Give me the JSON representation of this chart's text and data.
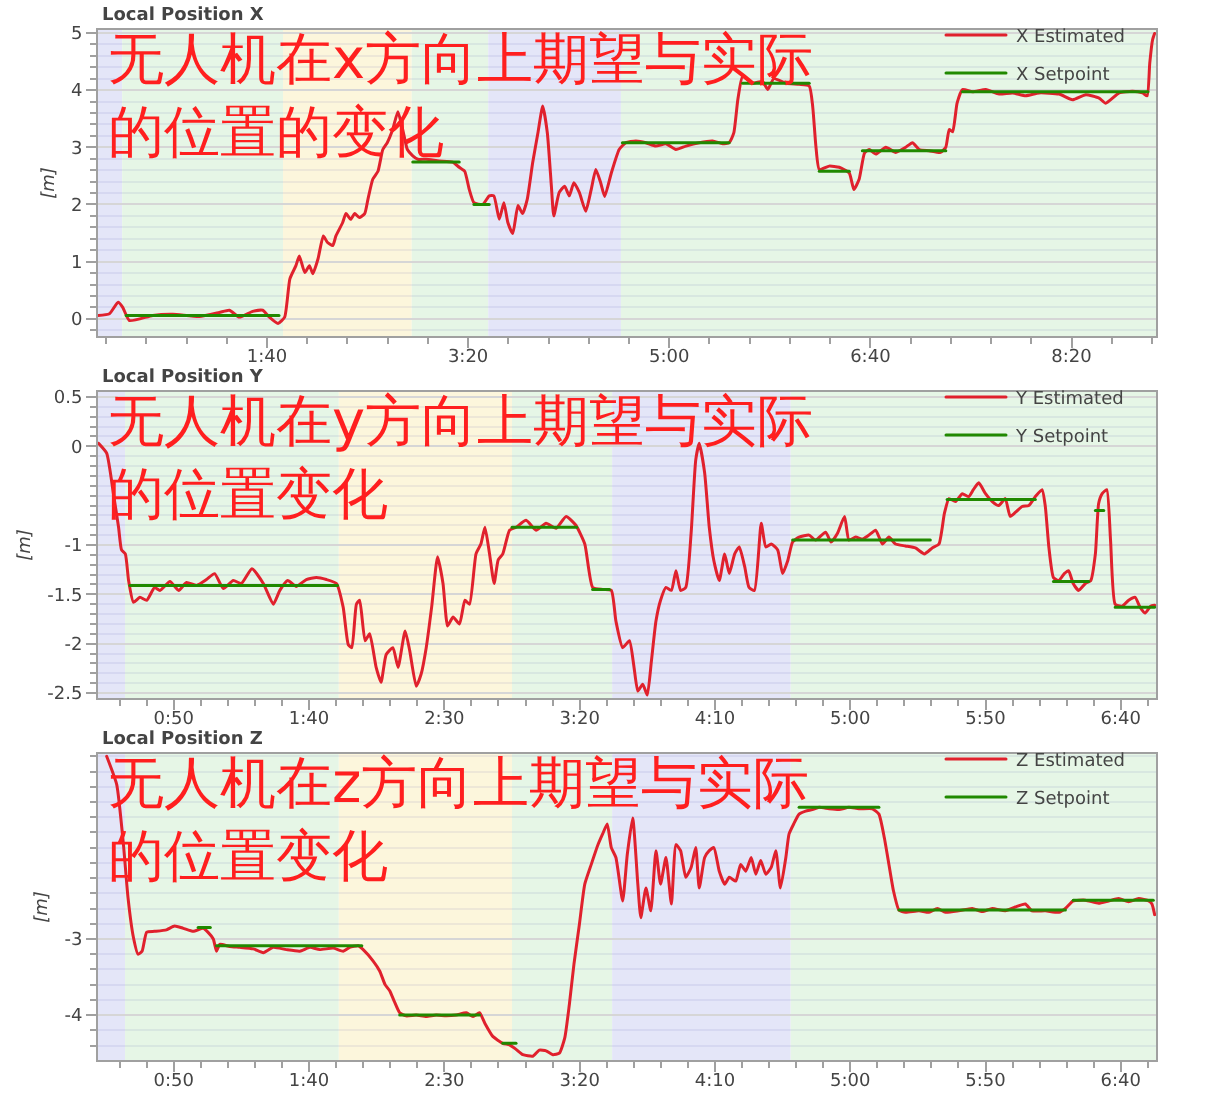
{
  "chart_data": [
    {
      "type": "line",
      "title": "Local Position X",
      "ylabel": "[m]",
      "xlim": [
        16,
        542
      ],
      "ylim": [
        -0.3,
        5.05
      ],
      "xticks": [
        {
          "value": 20,
          "label": null
        },
        {
          "value": 40,
          "label": null
        },
        {
          "value": 60,
          "label": null
        },
        {
          "value": 80,
          "label": null
        },
        {
          "value": 100,
          "label": "1:40"
        },
        {
          "value": 120,
          "label": null
        },
        {
          "value": 140,
          "label": null
        },
        {
          "value": 160,
          "label": null
        },
        {
          "value": 180,
          "label": null
        },
        {
          "value": 200,
          "label": "3:20"
        },
        {
          "value": 220,
          "label": null
        },
        {
          "value": 240,
          "label": null
        },
        {
          "value": 260,
          "label": null
        },
        {
          "value": 280,
          "label": null
        },
        {
          "value": 300,
          "label": "5:00"
        },
        {
          "value": 320,
          "label": null
        },
        {
          "value": 340,
          "label": null
        },
        {
          "value": 360,
          "label": null
        },
        {
          "value": 380,
          "label": null
        },
        {
          "value": 400,
          "label": "6:40"
        },
        {
          "value": 420,
          "label": null
        },
        {
          "value": 440,
          "label": null
        },
        {
          "value": 460,
          "label": null
        },
        {
          "value": 480,
          "label": null
        },
        {
          "value": 500,
          "label": "8:20"
        },
        {
          "value": 520,
          "label": null
        },
        {
          "value": 540,
          "label": null
        }
      ],
      "yticks": [
        {
          "value": -0.2,
          "label": null
        },
        0,
        {
          "value": 0.2,
          "label": null
        },
        {
          "value": 0.4,
          "label": null
        },
        {
          "value": 0.6,
          "label": null
        },
        {
          "value": 0.8,
          "label": null
        },
        1,
        {
          "value": 1.2,
          "label": null
        },
        {
          "value": 1.4,
          "label": null
        },
        {
          "value": 1.6,
          "label": null
        },
        {
          "value": 1.8,
          "label": null
        },
        2,
        {
          "value": 2.2,
          "label": null
        },
        {
          "value": 2.4,
          "label": null
        },
        {
          "value": 2.6,
          "label": null
        },
        {
          "value": 2.8,
          "label": null
        },
        3,
        {
          "value": 3.2,
          "label": null
        },
        {
          "value": 3.4,
          "label": null
        },
        {
          "value": 3.6,
          "label": null
        },
        {
          "value": 3.8,
          "label": null
        },
        4,
        {
          "value": 4.2,
          "label": null
        },
        {
          "value": 4.4,
          "label": null
        },
        {
          "value": 4.6,
          "label": null
        },
        {
          "value": 4.8,
          "label": null
        },
        5
      ],
      "series": [
        {
          "name": "X Estimated",
          "color": "#e0212d",
          "x": [
            16,
            21.7,
            26,
            28.3,
            31.6,
            43.2,
            53.2,
            66.4,
            76.3,
            81.3,
            86.3,
            92.9,
            97.9,
            101.2,
            105.5,
            108.8,
            111.4,
            114.4,
            116.1,
            118.8,
            121.1,
            122.8,
            125.4,
            128,
            130,
            132.7,
            134.3,
            137.6,
            139.3,
            141.6,
            143.6,
            145.9,
            148.6,
            150.2,
            152.6,
            155.2,
            157.6,
            159.8,
            162.5,
            165.1,
            167.5,
            169.8,
            172.5,
            175,
            179,
            185.7,
            192.3,
            195.6,
            198.3,
            200.6,
            202.9,
            207.3,
            210.5,
            212.8,
            215.5,
            217.8,
            219.8,
            222.2,
            224.8,
            227.1,
            229.4,
            232.1,
            234.7,
            237.1,
            239.4,
            241.4,
            242.6,
            245.3,
            248,
            250.3,
            252.6,
            255.3,
            258.5,
            261.2,
            263.5,
            265.9,
            267.9,
            271.2,
            275.1,
            278.4,
            283.4,
            288.4,
            293.3,
            298.3,
            303.3,
            308.3,
            314.9,
            321.6,
            326.5,
            329.8,
            332.1,
            334.1,
            336.5,
            341.5,
            346.4,
            349,
            352,
            358,
            364.6,
            369.6,
            371.3,
            372.9,
            374.6,
            379.5,
            384.5,
            389.5,
            391.8,
            394.4,
            397.1,
            399.4,
            402.7,
            407.7,
            412.6,
            417.6,
            420.9,
            424.3,
            429.2,
            434.9,
            437.5,
            439.2,
            440.9,
            443.1,
            445.8,
            450.8,
            457.4,
            464,
            470.7,
            477.2,
            483.9,
            493.8,
            500.5,
            507.1,
            513.7,
            517,
            523.7,
            530.3,
            535.3,
            537.6,
            538.9,
            540.3,
            541.3
          ],
          "values": [
            0.06,
            0.09,
            0.29,
            0.2,
            -0.03,
            0.06,
            0.08,
            0.04,
            0.11,
            0.15,
            0.03,
            0.13,
            0.15,
            0.03,
            -0.08,
            0.03,
            0.7,
            0.93,
            1.1,
            0.81,
            0.93,
            0.79,
            1.05,
            1.45,
            1.34,
            1.28,
            1.45,
            1.68,
            1.84,
            1.74,
            1.84,
            1.77,
            1.84,
            2.09,
            2.44,
            2.58,
            2.96,
            3.08,
            3.31,
            3.62,
            3.31,
            2.96,
            2.85,
            2.79,
            2.79,
            2.76,
            2.74,
            2.65,
            2.58,
            2.26,
            2.03,
            2.0,
            2.15,
            2.15,
            1.74,
            2.03,
            1.68,
            1.49,
            1.98,
            1.84,
            2.09,
            2.73,
            3.25,
            3.72,
            3.25,
            2.32,
            1.8,
            2.21,
            2.32,
            2.15,
            2.38,
            2.21,
            1.88,
            2.26,
            2.61,
            2.38,
            2.14,
            2.55,
            2.96,
            3.08,
            3.11,
            3.08,
            3.02,
            3.06,
            2.96,
            3.02,
            3.08,
            3.11,
            3.06,
            3.08,
            3.25,
            3.83,
            4.24,
            4.12,
            4.15,
            4.01,
            4.2,
            4.12,
            4.1,
            4.07,
            3.72,
            3.02,
            2.61,
            2.67,
            2.65,
            2.55,
            2.26,
            2.44,
            2.9,
            2.96,
            2.88,
            3.0,
            2.91,
            3.0,
            3.08,
            2.96,
            2.94,
            2.91,
            3.0,
            3.31,
            3.27,
            3.77,
            4.01,
            3.97,
            4.01,
            3.93,
            3.95,
            3.9,
            3.95,
            3.93,
            3.83,
            3.92,
            3.86,
            3.77,
            3.95,
            3.98,
            3.95,
            3.9,
            4.47,
            4.88,
            4.99
          ]
        },
        {
          "name": "X Setpoint",
          "color": "#208900",
          "x": [
            30,
            106,
            140,
            172.5,
            195.6,
            199,
            202.9,
            210.5,
            240,
            276.7,
            329.8,
            333,
            336.5,
            369.6,
            372,
            374.6,
            389.5,
            392,
            396,
            437.5,
            441,
            445.8,
            538
          ],
          "values": [
            0.06,
            0.06,
            null,
            2.74,
            2.74,
            null,
            2.0,
            2.0,
            null,
            3.08,
            3.08,
            null,
            4.12,
            4.12,
            null,
            2.58,
            2.58,
            null,
            2.94,
            2.94,
            null,
            3.97,
            3.97
          ]
        }
      ],
      "bands": [
        {
          "axis": "x",
          "from": 16,
          "to": 28,
          "color": "#e4e6f8"
        },
        {
          "axis": "x",
          "from": 28,
          "to": 108,
          "color": "#e6f6e6"
        },
        {
          "axis": "x",
          "from": 108,
          "to": 172,
          "color": "#fcf6dc"
        },
        {
          "axis": "x",
          "from": 172,
          "to": 210,
          "color": "#e6f6e6"
        },
        {
          "axis": "x",
          "from": 210,
          "to": 276,
          "color": "#e4e6f8"
        },
        {
          "axis": "x",
          "from": 276,
          "to": 542,
          "color": "#e6f6e6"
        }
      ],
      "legend": "top right",
      "grid": "y",
      "annotations": [
        "无人机在x方向上期望与实际的位置的变化"
      ]
    },
    {
      "type": "line",
      "title": "Local Position Y",
      "ylabel": "[m]",
      "xlim": [
        22,
        413
      ],
      "ylim": [
        -2.55,
        0.55
      ],
      "xticks": [
        {
          "value": 30,
          "label": null
        },
        {
          "value": 40,
          "label": null
        },
        {
          "value": 50,
          "label": "0:50"
        },
        {
          "value": 60,
          "label": null
        },
        {
          "value": 70,
          "label": null
        },
        {
          "value": 80,
          "label": null
        },
        {
          "value": 90,
          "label": null
        },
        {
          "value": 100,
          "label": "1:40"
        },
        {
          "value": 110,
          "label": null
        },
        {
          "value": 120,
          "label": null
        },
        {
          "value": 130,
          "label": null
        },
        {
          "value": 140,
          "label": null
        },
        {
          "value": 150,
          "label": "2:30"
        },
        {
          "value": 160,
          "label": null
        },
        {
          "value": 170,
          "label": null
        },
        {
          "value": 180,
          "label": null
        },
        {
          "value": 190,
          "label": null
        },
        {
          "value": 200,
          "label": "3:20"
        },
        {
          "value": 210,
          "label": null
        },
        {
          "value": 220,
          "label": null
        },
        {
          "value": 230,
          "label": null
        },
        {
          "value": 240,
          "label": null
        },
        {
          "value": 250,
          "label": "4:10"
        },
        {
          "value": 260,
          "label": null
        },
        {
          "value": 270,
          "label": null
        },
        {
          "value": 280,
          "label": null
        },
        {
          "value": 290,
          "label": null
        },
        {
          "value": 300,
          "label": "5:00"
        },
        {
          "value": 310,
          "label": null
        },
        {
          "value": 320,
          "label": null
        },
        {
          "value": 330,
          "label": null
        },
        {
          "value": 340,
          "label": null
        },
        {
          "value": 350,
          "label": "5:50"
        },
        {
          "value": 360,
          "label": null
        },
        {
          "value": 370,
          "label": null
        },
        {
          "value": 380,
          "label": null
        },
        {
          "value": 390,
          "label": null
        },
        {
          "value": 400,
          "label": "6:40"
        },
        {
          "value": 410,
          "label": null
        }
      ],
      "yticks": [
        -2.5,
        {
          "value": -2.4,
          "label": null
        },
        {
          "value": -2.3,
          "label": null
        },
        {
          "value": -2.2,
          "label": null
        },
        {
          "value": -2.1,
          "label": null
        },
        -2,
        {
          "value": -1.9,
          "label": null
        },
        {
          "value": -1.8,
          "label": null
        },
        {
          "value": -1.7,
          "label": null
        },
        {
          "value": -1.6,
          "label": null
        },
        -1.5,
        {
          "value": -1.4,
          "label": null
        },
        {
          "value": -1.3,
          "label": null
        },
        {
          "value": -1.2,
          "label": null
        },
        {
          "value": -1.1,
          "label": null
        },
        -1,
        {
          "value": -0.9,
          "label": null
        },
        {
          "value": -0.8,
          "label": null
        },
        {
          "value": -0.7,
          "label": null
        },
        {
          "value": -0.6,
          "label": null
        },
        {
          "value": -0.5,
          "label": null
        },
        {
          "value": -0.4,
          "label": null
        },
        {
          "value": -0.3,
          "label": null
        },
        {
          "value": -0.2,
          "label": null
        },
        {
          "value": -0.1,
          "label": null
        },
        0,
        {
          "value": 0.1,
          "label": null
        },
        {
          "value": 0.2,
          "label": null
        },
        {
          "value": 0.3,
          "label": null
        },
        {
          "value": 0.4,
          "label": null
        },
        0.5
      ],
      "series": [
        {
          "name": "Y Estimated",
          "color": "#e0212d",
          "x": [
            22.2,
            25.2,
            27.7,
            29.6,
            30.7,
            32.1,
            33.3,
            35.1,
            37.5,
            40,
            42.9,
            44.9,
            48.6,
            51.8,
            54.7,
            58.4,
            62.1,
            65.1,
            68.3,
            72,
            75,
            78.9,
            83.1,
            86.8,
            89.2,
            92.1,
            95.3,
            99,
            102.7,
            106.4,
            110.1,
            112.6,
            114.5,
            115.8,
            117.5,
            118.7,
            120.7,
            122.4,
            124.8,
            126.6,
            128.5,
            131,
            132.9,
            135.5,
            137.2,
            139.6,
            141.4,
            143.3,
            145.3,
            147.5,
            149.5,
            151.2,
            153.2,
            155.6,
            157.6,
            159.3,
            161.7,
            163.5,
            165,
            166.7,
            168.4,
            169.9,
            171.6,
            174.1,
            176.5,
            180.2,
            183.9,
            187.6,
            191.3,
            195,
            198.6,
            201.9,
            204.8,
            208.5,
            211.7,
            213.4,
            215.9,
            218.4,
            220.1,
            221.5,
            223.3,
            225,
            226.5,
            228.2,
            229.9,
            231.9,
            233.9,
            235.6,
            237.3,
            239.2,
            241.2,
            242.9,
            244.2,
            246.2,
            247.9,
            249.6,
            251.6,
            253.6,
            255.3,
            257.3,
            259,
            261,
            262.6,
            264.6,
            267.1,
            268.8,
            270.8,
            273.2,
            275,
            276.9,
            278.7,
            281.1,
            284.8,
            287.2,
            290.9,
            292.9,
            295.3,
            297.9,
            299.5,
            302,
            304.5,
            306.9,
            309.4,
            311.9,
            314.3,
            316.7,
            320.4,
            324.1,
            327.4,
            330.3,
            332.8,
            334.8,
            336.5,
            338.9,
            341.4,
            343.8,
            345.5,
            347.5,
            350,
            352.5,
            354.9,
            357.3,
            359.1,
            361,
            363.5,
            366,
            368.4,
            370.9,
            372.1,
            373.4,
            375.1,
            377.1,
            379.1,
            380.7,
            382.4,
            384.4,
            386.9,
            388.9,
            390.6,
            391.8,
            393.1,
            394.8,
            396.2,
            397.9,
            400.4,
            402.9,
            405.3,
            407.1,
            409,
            411,
            412.5
          ],
          "values": [
            0.03,
            -0.07,
            -0.48,
            -0.82,
            -1.05,
            -1.09,
            -1.36,
            -1.58,
            -1.53,
            -1.56,
            -1.43,
            -1.46,
            -1.37,
            -1.46,
            -1.38,
            -1.41,
            -1.35,
            -1.29,
            -1.44,
            -1.36,
            -1.39,
            -1.24,
            -1.39,
            -1.6,
            -1.46,
            -1.36,
            -1.42,
            -1.35,
            -1.33,
            -1.35,
            -1.39,
            -1.63,
            -2.01,
            -2.04,
            -1.6,
            -1.56,
            -1.97,
            -1.9,
            -2.24,
            -2.39,
            -2.11,
            -2.04,
            -2.24,
            -1.87,
            -2.07,
            -2.43,
            -2.31,
            -2.04,
            -1.63,
            -1.12,
            -1.39,
            -1.82,
            -1.73,
            -1.8,
            -1.56,
            -1.6,
            -1.09,
            -0.99,
            -0.82,
            -1.09,
            -1.39,
            -1.15,
            -1.09,
            -0.85,
            -0.82,
            -0.75,
            -0.85,
            -0.78,
            -0.83,
            -0.71,
            -0.8,
            -0.99,
            -1.43,
            -1.45,
            -1.46,
            -1.77,
            -2.04,
            -1.97,
            -2.24,
            -2.48,
            -2.41,
            -2.52,
            -2.18,
            -1.77,
            -1.56,
            -1.43,
            -1.46,
            -1.26,
            -1.46,
            -1.43,
            -0.88,
            -0.14,
            0.03,
            -0.27,
            -0.82,
            -1.16,
            -1.36,
            -1.09,
            -1.29,
            -1.09,
            -1.02,
            -1.22,
            -1.43,
            -1.46,
            -0.78,
            -1.02,
            -0.99,
            -1.05,
            -1.29,
            -1.16,
            -0.97,
            -0.92,
            -0.9,
            -0.95,
            -0.87,
            -0.97,
            -0.88,
            -0.71,
            -0.95,
            -0.92,
            -0.94,
            -0.9,
            -0.85,
            -0.99,
            -0.92,
            -0.99,
            -1.01,
            -1.03,
            -1.09,
            -1.03,
            -0.99,
            -0.68,
            -0.53,
            -0.56,
            -0.48,
            -0.51,
            -0.44,
            -0.37,
            -0.48,
            -0.56,
            -0.6,
            -0.53,
            -0.71,
            -0.67,
            -0.61,
            -0.6,
            -0.51,
            -0.44,
            -0.61,
            -1.02,
            -1.33,
            -1.36,
            -1.29,
            -1.26,
            -1.39,
            -1.46,
            -1.39,
            -1.36,
            -1.09,
            -0.58,
            -0.48,
            -0.44,
            -0.95,
            -1.6,
            -1.62,
            -1.56,
            -1.53,
            -1.63,
            -1.69,
            -1.62,
            -1.61
          ]
        },
        {
          "name": "Y Setpoint",
          "color": "#208900",
          "x": [
            33.8,
            110.5,
            140,
            175,
            198.9,
            202,
            204.8,
            211,
            240,
            278.7,
            329.6,
            332,
            335.8,
            368.4,
            372,
            375.1,
            388.1,
            389.5,
            390.6,
            393.7,
            395.5,
            397.9,
            412.5
          ],
          "values": [
            -1.41,
            -1.41,
            null,
            -0.82,
            -0.82,
            null,
            -1.45,
            -1.45,
            null,
            -0.95,
            -0.95,
            null,
            -0.54,
            -0.54,
            null,
            -1.37,
            -1.37,
            null,
            -0.65,
            -0.65,
            null,
            -1.63,
            -1.63
          ]
        }
      ],
      "bands": [
        {
          "axis": "x",
          "from": 22,
          "to": 32,
          "color": "#e4e6f8"
        },
        {
          "axis": "x",
          "from": 32,
          "to": 111,
          "color": "#e6f6e6"
        },
        {
          "axis": "x",
          "from": 111,
          "to": 175,
          "color": "#fcf6dc"
        },
        {
          "axis": "x",
          "from": 175,
          "to": 212,
          "color": "#e6f6e6"
        },
        {
          "axis": "x",
          "from": 212,
          "to": 278,
          "color": "#e4e6f8"
        },
        {
          "axis": "x",
          "from": 278,
          "to": 413,
          "color": "#e6f6e6"
        }
      ],
      "legend": "top right",
      "grid": "y",
      "annotations": [
        "无人机在y方向上期望与实际的位置变化"
      ]
    },
    {
      "type": "line",
      "title": "Local Position Z",
      "ylabel": "[m]",
      "xlim": [
        22,
        413
      ],
      "ylim": [
        -4.59,
        -0.57
      ],
      "xticks": [
        {
          "value": 30,
          "label": null
        },
        {
          "value": 40,
          "label": null
        },
        {
          "value": 50,
          "label": "0:50"
        },
        {
          "value": 60,
          "label": null
        },
        {
          "value": 70,
          "label": null
        },
        {
          "value": 80,
          "label": null
        },
        {
          "value": 90,
          "label": null
        },
        {
          "value": 100,
          "label": "1:40"
        },
        {
          "value": 110,
          "label": null
        },
        {
          "value": 120,
          "label": null
        },
        {
          "value": 130,
          "label": null
        },
        {
          "value": 140,
          "label": null
        },
        {
          "value": 150,
          "label": "2:30"
        },
        {
          "value": 160,
          "label": null
        },
        {
          "value": 170,
          "label": null
        },
        {
          "value": 180,
          "label": null
        },
        {
          "value": 190,
          "label": null
        },
        {
          "value": 200,
          "label": "3:20"
        },
        {
          "value": 210,
          "label": null
        },
        {
          "value": 220,
          "label": null
        },
        {
          "value": 230,
          "label": null
        },
        {
          "value": 240,
          "label": null
        },
        {
          "value": 250,
          "label": "4:10"
        },
        {
          "value": 260,
          "label": null
        },
        {
          "value": 270,
          "label": null
        },
        {
          "value": 280,
          "label": null
        },
        {
          "value": 290,
          "label": null
        },
        {
          "value": 300,
          "label": "5:00"
        },
        {
          "value": 310,
          "label": null
        },
        {
          "value": 320,
          "label": null
        },
        {
          "value": 330,
          "label": null
        },
        {
          "value": 340,
          "label": null
        },
        {
          "value": 350,
          "label": "5:50"
        },
        {
          "value": 360,
          "label": null
        },
        {
          "value": 370,
          "label": null
        },
        {
          "value": 380,
          "label": null
        },
        {
          "value": 390,
          "label": null
        },
        {
          "value": 400,
          "label": "6:40"
        },
        {
          "value": 410,
          "label": null
        }
      ],
      "yticks": [
        {
          "value": -4.4,
          "label": null
        },
        {
          "value": -4.2,
          "label": null
        },
        -4,
        {
          "value": -3.8,
          "label": null
        },
        {
          "value": -3.6,
          "label": null
        },
        {
          "value": -3.4,
          "label": null
        },
        {
          "value": -3.2,
          "label": null
        },
        -3,
        {
          "value": -2.8,
          "label": null
        },
        {
          "value": -2.6,
          "label": null
        },
        {
          "value": -2.4,
          "label": null
        },
        {
          "value": -2.2,
          "label": null
        },
        {
          "value": -2,
          "label": null
        },
        {
          "value": -1.8,
          "label": null
        },
        {
          "value": -1.6,
          "label": null
        },
        {
          "value": -1.4,
          "label": null
        },
        {
          "value": -1.2,
          "label": null
        },
        {
          "value": -1,
          "label": null
        },
        {
          "value": -0.8,
          "label": null
        },
        {
          "value": -0.6,
          "label": null
        }
      ],
      "series": [
        {
          "name": "Z Estimated",
          "color": "#e0212d",
          "x": [
            25.2,
            28.9,
            31.4,
            33.1,
            35.1,
            36.8,
            38.3,
            40,
            42.9,
            47.3,
            50.3,
            53.5,
            57.2,
            60.9,
            62.6,
            64.6,
            65.8,
            67,
            70.7,
            74.4,
            79.4,
            83.1,
            86.7,
            91.6,
            96.6,
            100.3,
            103.9,
            108.9,
            112.6,
            115,
            118.2,
            120,
            123.7,
            126.1,
            128.1,
            129.8,
            131.5,
            133.5,
            135.9,
            139.6,
            143.3,
            147,
            150.7,
            154.4,
            158.1,
            160.6,
            163,
            165,
            167.9,
            171.6,
            174.1,
            176.5,
            179,
            182.7,
            185.1,
            187.6,
            190.1,
            192.5,
            194.5,
            196.2,
            197.9,
            199.9,
            201.9,
            204.3,
            206.8,
            208.5,
            210.2,
            211.7,
            213.4,
            215.9,
            217.6,
            219.6,
            221.5,
            222.6,
            224.5,
            226.3,
            228.2,
            229.9,
            231.9,
            233.9,
            235.6,
            237.3,
            239.2,
            241.2,
            242.9,
            244.2,
            246.2,
            247.9,
            249.6,
            251.6,
            253.6,
            255.3,
            257.7,
            259.5,
            261.4,
            263.4,
            265.1,
            266.9,
            268.8,
            270.8,
            272.5,
            274.2,
            276.2,
            277.4,
            279.1,
            281.1,
            283.5,
            286,
            288.5,
            292.2,
            295.9,
            299.5,
            303.2,
            308.2,
            310.6,
            312.6,
            314.3,
            316,
            318,
            320.4,
            325.4,
            329.1,
            332.2,
            335.2,
            340.1,
            345.1,
            348.8,
            352.5,
            357.3,
            361,
            364.7,
            367.2,
            372.1,
            377.1,
            379.5,
            382.4,
            386.9,
            391.8,
            395.5,
            399.2,
            402.9,
            406.6,
            410.3,
            411.5,
            412.5
          ],
          "values": [
            -0.6,
            -0.97,
            -1.76,
            -2.46,
            -2.98,
            -3.2,
            -3.16,
            -2.91,
            -2.9,
            -2.88,
            -2.83,
            -2.86,
            -2.9,
            -2.86,
            -2.91,
            -3.0,
            -3.16,
            -3.07,
            -3.1,
            -3.11,
            -3.13,
            -3.18,
            -3.11,
            -3.14,
            -3.16,
            -3.11,
            -3.14,
            -3.12,
            -3.16,
            -3.11,
            -3.09,
            -3.14,
            -3.29,
            -3.42,
            -3.6,
            -3.68,
            -3.82,
            -3.97,
            -4.01,
            -4.0,
            -4.02,
            -4.0,
            -4.01,
            -4.0,
            -3.97,
            -4.02,
            -3.97,
            -4.11,
            -4.28,
            -4.37,
            -4.39,
            -4.45,
            -4.52,
            -4.54,
            -4.46,
            -4.47,
            -4.52,
            -4.5,
            -4.3,
            -3.86,
            -3.33,
            -2.81,
            -2.28,
            -2.02,
            -1.76,
            -1.62,
            -1.49,
            -1.8,
            -1.93,
            -2.5,
            -1.89,
            -1.41,
            -2.28,
            -2.72,
            -2.33,
            -2.63,
            -1.84,
            -2.28,
            -1.93,
            -2.54,
            -1.76,
            -1.84,
            -2.19,
            -2.06,
            -1.8,
            -2.33,
            -1.93,
            -1.84,
            -1.8,
            -2.11,
            -2.28,
            -2.19,
            -2.24,
            -2.02,
            -2.11,
            -1.93,
            -2.15,
            -1.97,
            -2.15,
            -2.06,
            -1.84,
            -2.33,
            -1.93,
            -1.62,
            -1.49,
            -1.36,
            -1.32,
            -1.3,
            -1.27,
            -1.29,
            -1.3,
            -1.27,
            -1.29,
            -1.29,
            -1.36,
            -1.67,
            -2.02,
            -2.37,
            -2.62,
            -2.65,
            -2.63,
            -2.65,
            -2.6,
            -2.65,
            -2.63,
            -2.6,
            -2.64,
            -2.6,
            -2.63,
            -2.58,
            -2.54,
            -2.63,
            -2.63,
            -2.65,
            -2.6,
            -2.5,
            -2.49,
            -2.53,
            -2.5,
            -2.47,
            -2.51,
            -2.47,
            -2.5,
            -2.54,
            -2.68
          ]
        },
        {
          "name": "Z Setpoint",
          "color": "#208900",
          "x": [
            59,
            63.5,
            64.6,
            65.8,
            119.5,
            126,
            133.5,
            163,
            167,
            171.6,
            176.5,
            230,
            281.1,
            310.6,
            314,
            318,
            379.5,
            381,
            382.4,
            412
          ],
          "values": [
            -2.85,
            -2.85,
            null,
            -3.09,
            -3.09,
            null,
            -4.0,
            -4.0,
            null,
            -4.37,
            -4.37,
            null,
            -1.27,
            -1.27,
            null,
            -2.62,
            -2.62,
            null,
            -2.49,
            -2.49
          ]
        }
      ],
      "bands": [
        {
          "axis": "x",
          "from": 22,
          "to": 32,
          "color": "#e4e6f8"
        },
        {
          "axis": "x",
          "from": 32,
          "to": 111,
          "color": "#e6f6e6"
        },
        {
          "axis": "x",
          "from": 111,
          "to": 175,
          "color": "#fcf6dc"
        },
        {
          "axis": "x",
          "from": 175,
          "to": 212,
          "color": "#e6f6e6"
        },
        {
          "axis": "x",
          "from": 212,
          "to": 278,
          "color": "#e4e6f8"
        },
        {
          "axis": "x",
          "from": 278,
          "to": 413,
          "color": "#e6f6e6"
        }
      ],
      "legend": "top right",
      "grid": "y",
      "annotations": [
        "无人机在z方向上期望与实际的位置变化"
      ]
    }
  ]
}
